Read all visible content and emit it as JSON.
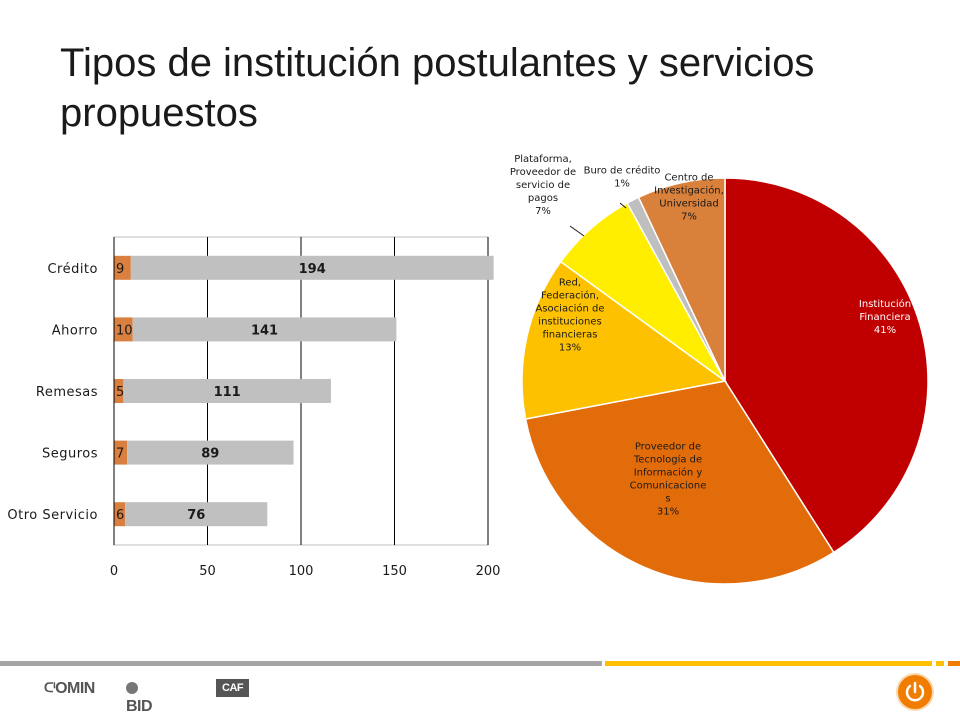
{
  "title": "Tipos de institución postulantes y servicios propuestos",
  "chart_data": [
    {
      "type": "bar",
      "orientation": "horizontal",
      "stacked": true,
      "categories": [
        "Crédito",
        "Ahorro",
        "Remesas",
        "Seguros",
        "Otro Servicio"
      ],
      "series": [
        {
          "values": [
            9,
            10,
            5,
            7,
            6
          ],
          "color": "#d97f3f"
        },
        {
          "values": [
            194,
            141,
            111,
            89,
            76
          ],
          "color": "#c0c0c0"
        }
      ],
      "xticks": [
        "0",
        "50",
        "100",
        "150",
        "200"
      ],
      "xlim": [
        0,
        200
      ],
      "grid": true
    },
    {
      "type": "pie",
      "slices": [
        {
          "label": [
            "Institución",
            "Financiera",
            "41%"
          ],
          "value": 41,
          "color": "#c00000"
        },
        {
          "label": [
            "Proveedor de",
            "Tecnología de",
            "Información y",
            "Comunicacione",
            "s",
            "31%"
          ],
          "value": 31,
          "color": "#e36c0a"
        },
        {
          "label": [
            "Red,",
            "Federación,",
            "Asociación de",
            "instituciones",
            "financieras",
            "13%"
          ],
          "value": 13,
          "color": "#fdc100"
        },
        {
          "label": [
            "Plataforma,",
            "Proveedor de",
            "servicio de",
            "pagos",
            "7%"
          ],
          "value": 7,
          "color": "#ffee00"
        },
        {
          "label": [
            "Buro de crédito",
            "1%"
          ],
          "value": 1,
          "color": "#bfbfbf"
        },
        {
          "label": [
            "Centro de",
            "Investigación,",
            "Universidad",
            "7%"
          ],
          "value": 7,
          "color": "#d9803b"
        }
      ]
    }
  ],
  "footer": {
    "logos": [
      "FOMIN",
      "BID",
      "CAF"
    ],
    "colors": {
      "grey": "#a6a6a6",
      "yellow": "#ffc000",
      "orange": "#f07c00"
    }
  }
}
